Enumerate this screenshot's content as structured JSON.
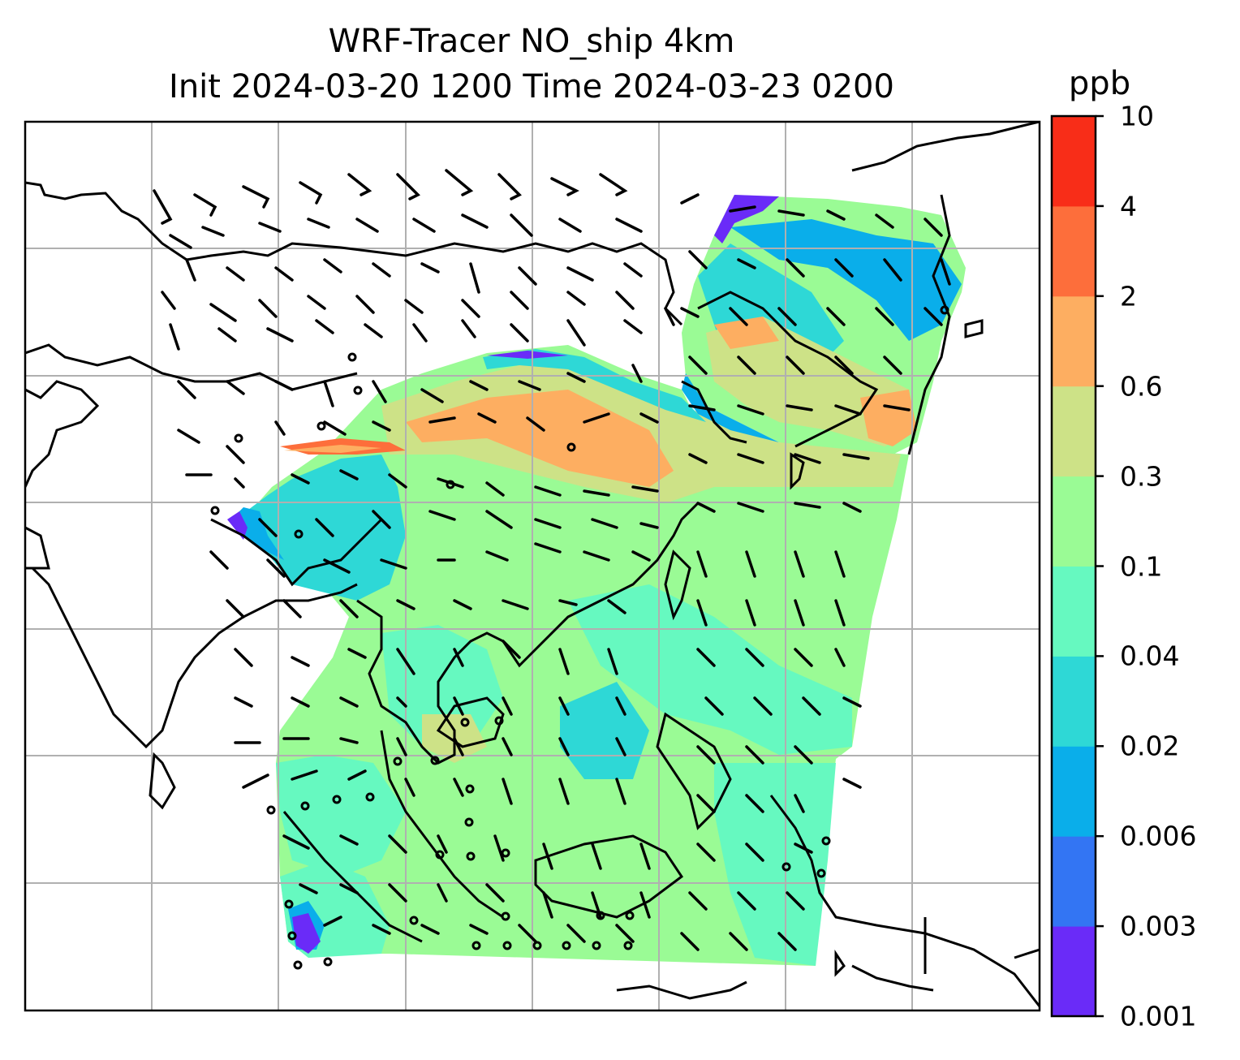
{
  "title": {
    "line1": "WRF-Tracer NO_ship 4km",
    "line2": "Init 2024-03-20 1200 Time 2024-03-23 0200"
  },
  "colorbar": {
    "unit": "ppb",
    "levels": [
      "0.001",
      "0.003",
      "0.006",
      "0.02",
      "0.04",
      "0.1",
      "0.3",
      "0.6",
      "2",
      "4",
      "10"
    ],
    "colors": [
      "#6a2bf8",
      "#3375f3",
      "#0aaeea",
      "#2ed8d6",
      "#66f9c0",
      "#9afb95",
      "#cde287",
      "#fdae61",
      "#fd6e3b",
      "#f82d18"
    ]
  },
  "map": {
    "gridlines": true,
    "wind_barbs": true,
    "field": "NO_ship tracer concentration",
    "field_colors": {
      "very_low": "#6a2bf8",
      "low": "#0aaeea",
      "mid_low": "#2ed8d6",
      "mid": "#66f9c0",
      "mid_high": "#9afb95",
      "high": "#cde287",
      "higher": "#fdae61",
      "peak": "#fd6e3b"
    }
  }
}
